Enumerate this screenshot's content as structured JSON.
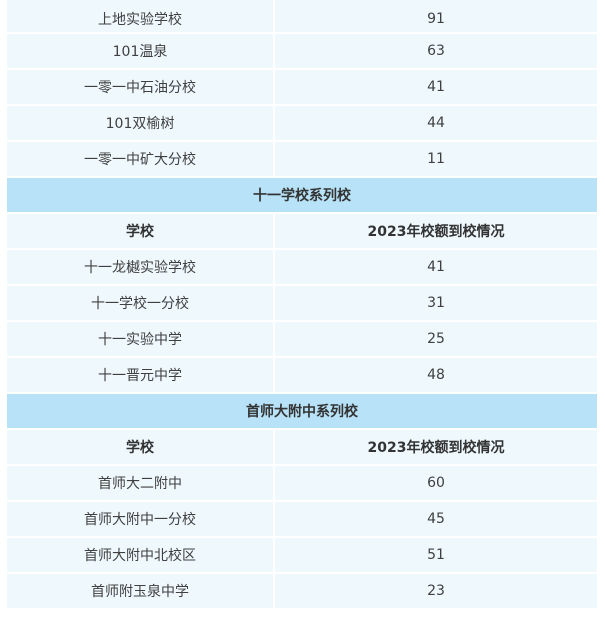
{
  "table": {
    "header": {
      "school": "学校",
      "value": "2023年校额到校情况"
    },
    "top_rows": [
      {
        "school": "上地实验学校",
        "value": "91"
      },
      {
        "school": "101温泉",
        "value": "63"
      },
      {
        "school": "一零一中石油分校",
        "value": "41"
      },
      {
        "school": "101双榆树",
        "value": "44"
      },
      {
        "school": "一零一中矿大分校",
        "value": "11"
      }
    ],
    "groups": [
      {
        "title": "十一学校系列校",
        "rows": [
          {
            "school": "十一龙樾实验学校",
            "value": "41"
          },
          {
            "school": "十一学校一分校",
            "value": "31"
          },
          {
            "school": "十一实验中学",
            "value": "25"
          },
          {
            "school": "十一晋元中学",
            "value": "48"
          }
        ]
      },
      {
        "title": "首师大附中系列校",
        "rows": [
          {
            "school": "首师大二附中",
            "value": "60"
          },
          {
            "school": "首师大附中一分校",
            "value": "45"
          },
          {
            "school": "首师大附中北校区",
            "value": "51"
          },
          {
            "school": "首师附玉泉中学",
            "value": "23"
          }
        ]
      }
    ]
  }
}
